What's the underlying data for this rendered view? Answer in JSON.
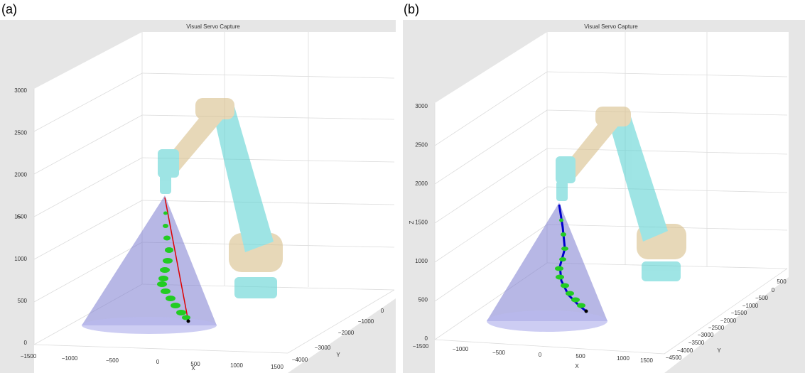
{
  "panels": [
    {
      "label": "(a)",
      "title": "Visual Servo Capture",
      "x": {
        "label": "X",
        "ticks": [
          "−1500",
          "−1000",
          "−500",
          "0",
          "500",
          "1000",
          "1500"
        ]
      },
      "y": {
        "label": "Y",
        "ticks": [
          "−4000",
          "−3000",
          "−2000",
          "−1000",
          "0"
        ]
      },
      "z": {
        "label": "Z",
        "ticks": [
          "0",
          "500",
          "1000",
          "1500",
          "2000",
          "2500",
          "3000"
        ]
      }
    },
    {
      "label": "(b)",
      "title": "Visual Servo Capture",
      "x": {
        "label": "X",
        "ticks": [
          "−1500",
          "−1000",
          "−500",
          "0",
          "500",
          "1000",
          "1500"
        ]
      },
      "y": {
        "label": "Y",
        "ticks": [
          "−4500",
          "−4000",
          "−3500",
          "−3000",
          "−2500",
          "−2000",
          "−1500",
          "−1000",
          "−500",
          "0",
          "500"
        ]
      },
      "z": {
        "label": "Z",
        "ticks": [
          "0",
          "500",
          "1000",
          "1500",
          "2000",
          "2500",
          "3000"
        ]
      }
    }
  ]
}
